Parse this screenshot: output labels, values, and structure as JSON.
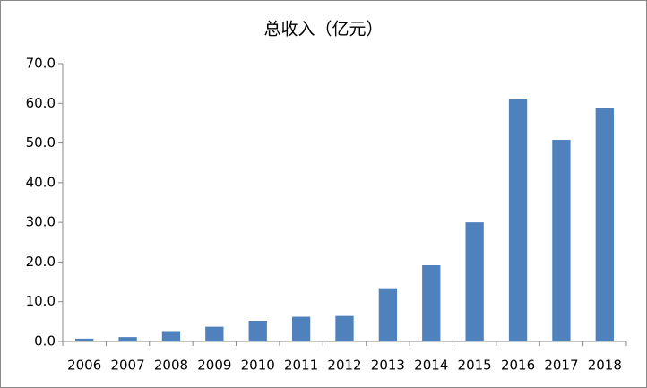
{
  "chart_data": {
    "type": "bar",
    "title": "总收入（亿元）",
    "categories": [
      "2006",
      "2007",
      "2008",
      "2009",
      "2010",
      "2011",
      "2012",
      "2013",
      "2014",
      "2015",
      "2016",
      "2017",
      "2018"
    ],
    "values": [
      0.7,
      1.1,
      2.6,
      3.7,
      5.2,
      6.2,
      6.4,
      13.4,
      19.2,
      30.0,
      61.0,
      50.8,
      58.9
    ],
    "color": "#4f81bd",
    "ylim": [
      0,
      70
    ],
    "yticks": [
      {
        "value": 0,
        "label": "0.0"
      },
      {
        "value": 10,
        "label": "10.0"
      },
      {
        "value": 20,
        "label": "20.0"
      },
      {
        "value": 30,
        "label": "30.0"
      },
      {
        "value": 40,
        "label": "40.0"
      },
      {
        "value": 50,
        "label": "50.0"
      },
      {
        "value": 60,
        "label": "60.0"
      },
      {
        "value": 70,
        "label": "70.0"
      }
    ],
    "grid": false
  }
}
